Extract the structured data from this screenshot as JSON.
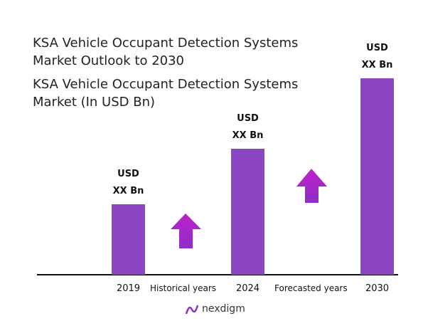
{
  "chart_data": {
    "type": "bar",
    "title": "KSA Vehicle Occupant Detection Systems Market Outlook to 2030",
    "subtitle": "KSA Vehicle Occupant Detection Systems Market (In USD Bn)",
    "categories": [
      "2019",
      "2024",
      "2030"
    ],
    "values": [
      1.0,
      1.8,
      2.8
    ],
    "value_labels": [
      "USD\nXX Bn",
      "USD\nXX Bn",
      "USD\nXX Bn"
    ],
    "ylim": [
      0,
      2.8
    ],
    "color": "#8b45c2",
    "annotations": [
      "Historical years",
      "Forecasted years"
    ]
  },
  "logo": "nexdigm"
}
